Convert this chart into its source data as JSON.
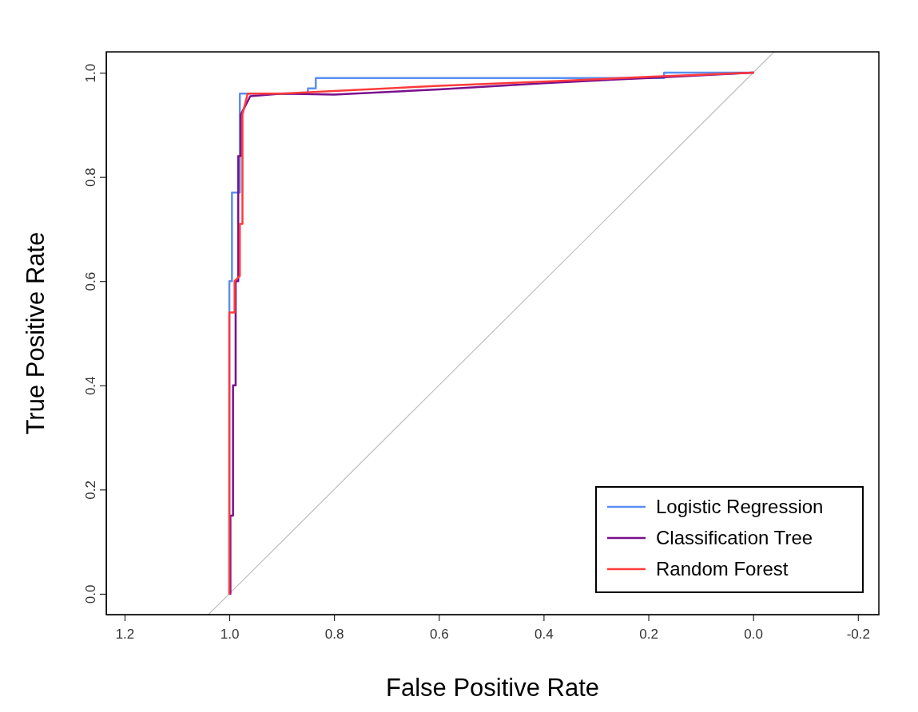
{
  "chart_data": {
    "type": "line",
    "xlabel": "False Positive Rate",
    "ylabel": "True Positive Rate",
    "xlim": [
      1.235,
      -0.24
    ],
    "ylim": [
      -0.04,
      1.04
    ],
    "xticks": [
      {
        "value": 1.2,
        "label": "1.2"
      },
      {
        "value": 1.0,
        "label": "1.0"
      },
      {
        "value": 0.8,
        "label": "0.8"
      },
      {
        "value": 0.6,
        "label": "0.6"
      },
      {
        "value": 0.4,
        "label": "0.4"
      },
      {
        "value": 0.2,
        "label": "0.2"
      },
      {
        "value": 0,
        "label": "0.0"
      },
      {
        "value": -0.2,
        "label": "-0.2"
      }
    ],
    "yticks": [
      {
        "value": 0,
        "label": "0.0"
      },
      {
        "value": 0.2,
        "label": "0.2"
      },
      {
        "value": 0.4,
        "label": "0.4"
      },
      {
        "value": 0.6,
        "label": "0.6"
      },
      {
        "value": 0.8,
        "label": "0.8"
      },
      {
        "value": 1.0,
        "label": "1.0"
      }
    ],
    "legend": "bottom right",
    "grid": false,
    "marker": "none",
    "line_style": "solid",
    "series": [
      {
        "color": "#bebebe",
        "x": [
          1.04,
          -0.04
        ],
        "values": [
          -0.04,
          1.04
        ]
      },
      {
        "name": "Logistic Regression",
        "color": "#5b8ff0",
        "x": [
          1.0,
          1.0,
          0.995,
          0.995,
          0.98,
          0.98,
          0.85,
          0.85,
          0.835,
          0.835,
          0.17,
          0.17,
          0.0
        ],
        "values": [
          0,
          0.6,
          0.6,
          0.77,
          0.77,
          0.96,
          0.96,
          0.97,
          0.97,
          0.99,
          0.99,
          1.0,
          1.0
        ]
      },
      {
        "name": "Classification Tree",
        "color": "#7a0f8c",
        "x": [
          0.998,
          0.998,
          0.993,
          0.993,
          0.988,
          0.988,
          0.983,
          0.983,
          0.978,
          0.978,
          0.96,
          0.9,
          0.8,
          0.6,
          0.4,
          0.2,
          0.0
        ],
        "values": [
          0,
          0.15,
          0.15,
          0.4,
          0.4,
          0.6,
          0.6,
          0.84,
          0.84,
          0.92,
          0.955,
          0.96,
          0.958,
          0.968,
          0.98,
          0.99,
          1.0
        ]
      },
      {
        "name": "Random Forest",
        "color": "#ff3b3b",
        "x": [
          1.0,
          1.0,
          0.99,
          0.99,
          0.98,
          0.98,
          0.975,
          0.975,
          0.965,
          0.9,
          0.8,
          0.6,
          0.4,
          0.2,
          0.0
        ],
        "values": [
          0,
          0.54,
          0.54,
          0.6,
          0.61,
          0.71,
          0.71,
          0.92,
          0.96,
          0.96,
          0.965,
          0.975,
          0.983,
          0.992,
          1.0
        ]
      }
    ]
  }
}
